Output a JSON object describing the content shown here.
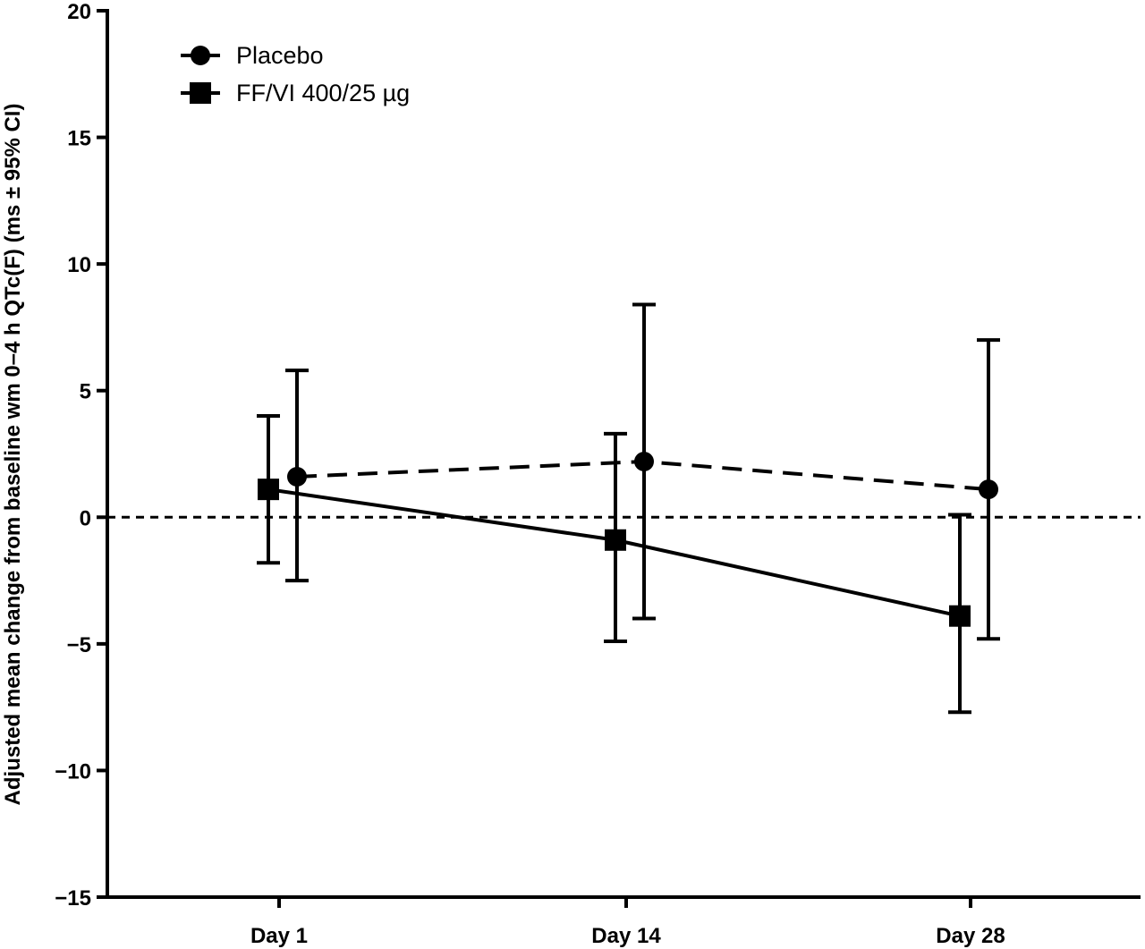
{
  "chart_data": {
    "type": "line",
    "categories": [
      "Day 1",
      "Day 14",
      "Day 28"
    ],
    "ylabel": "Adjusted mean change from baseline wm 0–4 h QTc(F) (ms ± 95% CI)",
    "xlabel": "",
    "ylim": [
      -15,
      20
    ],
    "yticks": [
      -15,
      -10,
      -5,
      0,
      5,
      10,
      15,
      20
    ],
    "ytick_labels": [
      "−15",
      "−10",
      "−5",
      "0",
      "5",
      "10",
      "15",
      "20"
    ],
    "reference_line": 0,
    "legend_position": "top-left",
    "grid": false,
    "series": [
      {
        "name": "Placebo",
        "marker": "circle",
        "line_style": "dashed",
        "color": "#000000",
        "values": [
          1.6,
          2.2,
          1.1
        ],
        "ci_low": [
          -2.5,
          -4.0,
          -4.8
        ],
        "ci_high": [
          5.8,
          8.4,
          7.0
        ]
      },
      {
        "name": "FF/VI 400/25 µg",
        "marker": "square",
        "line_style": "solid",
        "color": "#000000",
        "values": [
          1.1,
          -0.9,
          -3.9
        ],
        "ci_low": [
          -1.8,
          -4.9,
          -7.7
        ],
        "ci_high": [
          4.0,
          3.3,
          0.1
        ]
      }
    ]
  }
}
